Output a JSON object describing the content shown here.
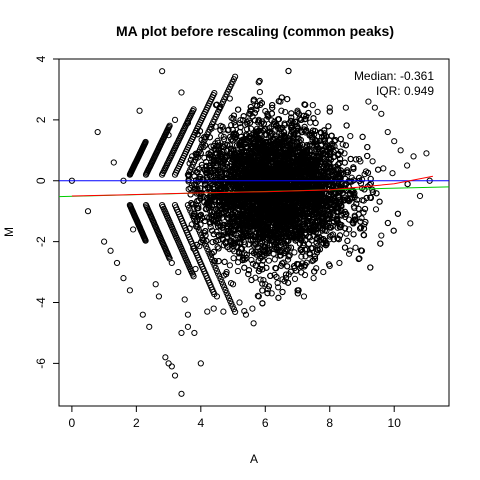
{
  "chart_data": {
    "type": "scatter",
    "title": "MA plot before rescaling (common peaks)",
    "xlabel": "A",
    "ylabel": "M",
    "xlim": [
      -0.4,
      11.7
    ],
    "ylim": [
      -7.4,
      4.0
    ],
    "x_ticks": [
      0,
      2,
      4,
      6,
      8,
      10
    ],
    "y_ticks": [
      -6,
      -4,
      -2,
      0,
      2,
      4
    ],
    "grid": false,
    "annotations": [
      "Median: -0.361",
      "IQR: 0.949"
    ],
    "reference_line": {
      "color": "#0000ff",
      "y": 0
    },
    "loess_fit": {
      "color": "#ff0000",
      "points": [
        [
          0.0,
          -0.5
        ],
        [
          2.0,
          -0.45
        ],
        [
          4.0,
          -0.4
        ],
        [
          6.0,
          -0.36
        ],
        [
          8.0,
          -0.3
        ],
        [
          10.0,
          -0.1
        ],
        [
          11.2,
          0.15
        ]
      ]
    },
    "trend_fit": {
      "color": "#00cc00",
      "points": [
        [
          -0.4,
          -0.52
        ],
        [
          11.7,
          -0.2
        ]
      ]
    },
    "points": [
      [
        0.0,
        0.0
      ],
      [
        0.5,
        -1.0
      ],
      [
        0.8,
        1.6
      ],
      [
        1.0,
        -2.0
      ],
      [
        1.3,
        0.6
      ],
      [
        1.6,
        0.0
      ],
      [
        1.2,
        -2.3
      ],
      [
        1.4,
        -2.7
      ],
      [
        1.6,
        -3.2
      ],
      [
        1.8,
        -3.6
      ],
      [
        1.9,
        -1.6
      ],
      [
        2.1,
        2.3
      ],
      [
        2.2,
        -4.4
      ],
      [
        2.4,
        -4.8
      ],
      [
        2.6,
        -3.4
      ],
      [
        2.7,
        -3.8
      ],
      [
        2.8,
        3.6
      ],
      [
        2.9,
        -5.8
      ],
      [
        3.0,
        -6.0
      ],
      [
        3.1,
        -6.1
      ],
      [
        3.2,
        -6.4
      ],
      [
        3.4,
        -7.0
      ],
      [
        3.4,
        -5.0
      ],
      [
        3.5,
        -3.9
      ],
      [
        3.6,
        -4.4
      ],
      [
        3.4,
        2.9
      ],
      [
        3.2,
        2.0
      ],
      [
        3.0,
        1.5
      ],
      [
        3.1,
        -2.7
      ],
      [
        3.3,
        -3.0
      ],
      [
        3.6,
        1.9
      ],
      [
        3.6,
        -4.8
      ],
      [
        3.8,
        -5.0
      ],
      [
        4.0,
        -6.0
      ],
      [
        4.2,
        -4.3
      ],
      [
        4.4,
        -4.2
      ],
      [
        4.5,
        2.5
      ],
      [
        4.5,
        -3.8
      ],
      [
        4.7,
        -4.3
      ],
      [
        4.8,
        -3.0
      ],
      [
        5.0,
        -3.4
      ],
      [
        5.2,
        -4.0
      ],
      [
        5.4,
        -4.4
      ],
      [
        5.6,
        -4.2
      ],
      [
        5.8,
        -3.8
      ],
      [
        6.0,
        -3.4
      ],
      [
        6.2,
        -3.7
      ],
      [
        6.4,
        -3.5
      ],
      [
        6.6,
        -3.3
      ],
      [
        7.0,
        -3.6
      ],
      [
        7.2,
        -3.8
      ],
      [
        7.5,
        -3.2
      ],
      [
        7.8,
        -3.0
      ],
      [
        8.0,
        -2.8
      ],
      [
        8.3,
        -2.7
      ],
      [
        8.6,
        -2.4
      ],
      [
        8.8,
        -2.2
      ],
      [
        9.0,
        -2.3
      ],
      [
        9.2,
        2.6
      ],
      [
        9.4,
        2.4
      ],
      [
        9.6,
        2.2
      ],
      [
        9.8,
        1.6
      ],
      [
        10.0,
        1.3
      ],
      [
        10.2,
        1.0
      ],
      [
        10.4,
        0.5
      ],
      [
        10.6,
        0.8
      ],
      [
        10.8,
        -0.5
      ],
      [
        11.0,
        0.9
      ],
      [
        11.1,
        0.0
      ],
      [
        10.5,
        -1.4
      ],
      [
        9.6,
        -1.8
      ],
      [
        7.0,
        2.3
      ],
      [
        8.0,
        2.4
      ],
      [
        8.5,
        2.4
      ],
      [
        6.5,
        2.3
      ],
      [
        5.5,
        2.2
      ],
      [
        4.9,
        2.7
      ],
      [
        5.8,
        2.0
      ]
    ],
    "dense_cloud": {
      "x_center": 6.3,
      "x_spread": 2.1,
      "y_center": -0.35,
      "y_spread": 1.0,
      "n": 7000
    }
  }
}
